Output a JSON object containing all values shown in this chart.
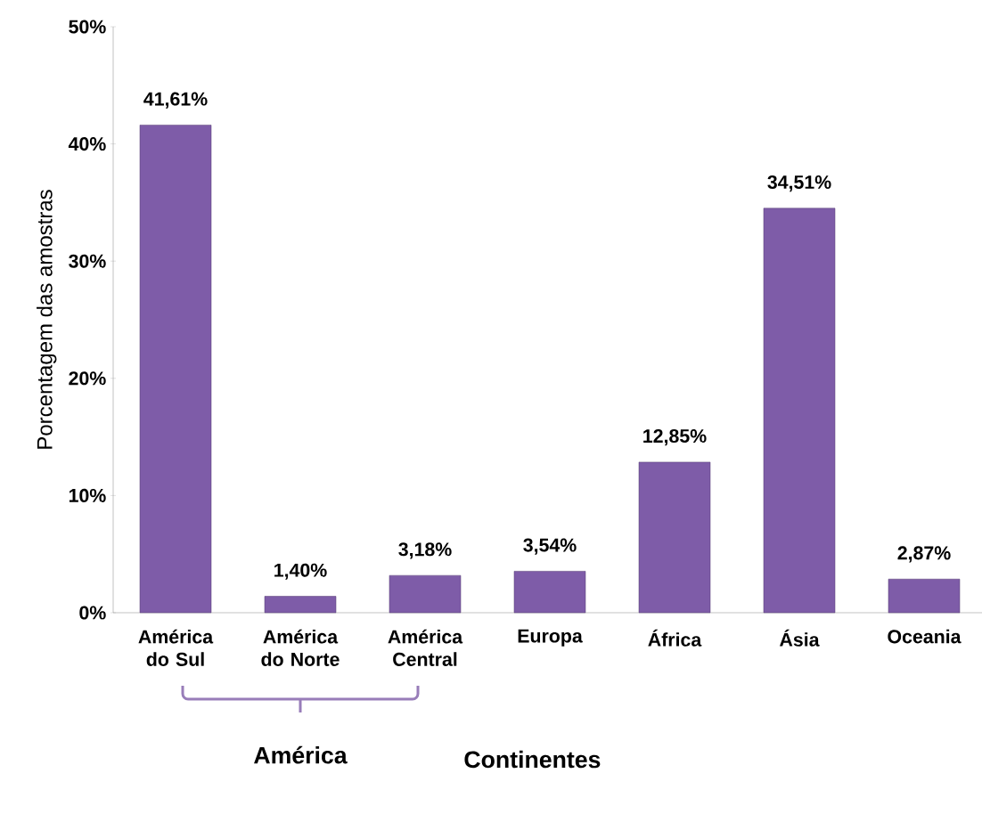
{
  "chart_data": {
    "type": "bar",
    "categories": [
      "América do Sul",
      "América do Norte",
      "América Central",
      "Europa",
      "África",
      "Ásia",
      "Oceania"
    ],
    "values": [
      41.61,
      1.4,
      3.18,
      3.54,
      12.85,
      34.51,
      2.87
    ],
    "value_labels": [
      "41,61%",
      "1,40%",
      "3,18%",
      "3,54%",
      "12,85%",
      "34,51%",
      "2,87%"
    ],
    "color": "#7e5ca8",
    "ylim": [
      0,
      50
    ],
    "yticks": [
      {
        "value": 0,
        "label": "0%"
      },
      {
        "value": 10,
        "label": "10%"
      },
      {
        "value": 20,
        "label": "20%"
      },
      {
        "value": 30,
        "label": "30%"
      },
      {
        "value": 40,
        "label": "40%"
      },
      {
        "value": 50,
        "label": "50%"
      }
    ],
    "ylabel": "Porcentagem das amostras",
    "xlabel": "Continentes",
    "annotations": [
      "América"
    ],
    "grid": false
  }
}
